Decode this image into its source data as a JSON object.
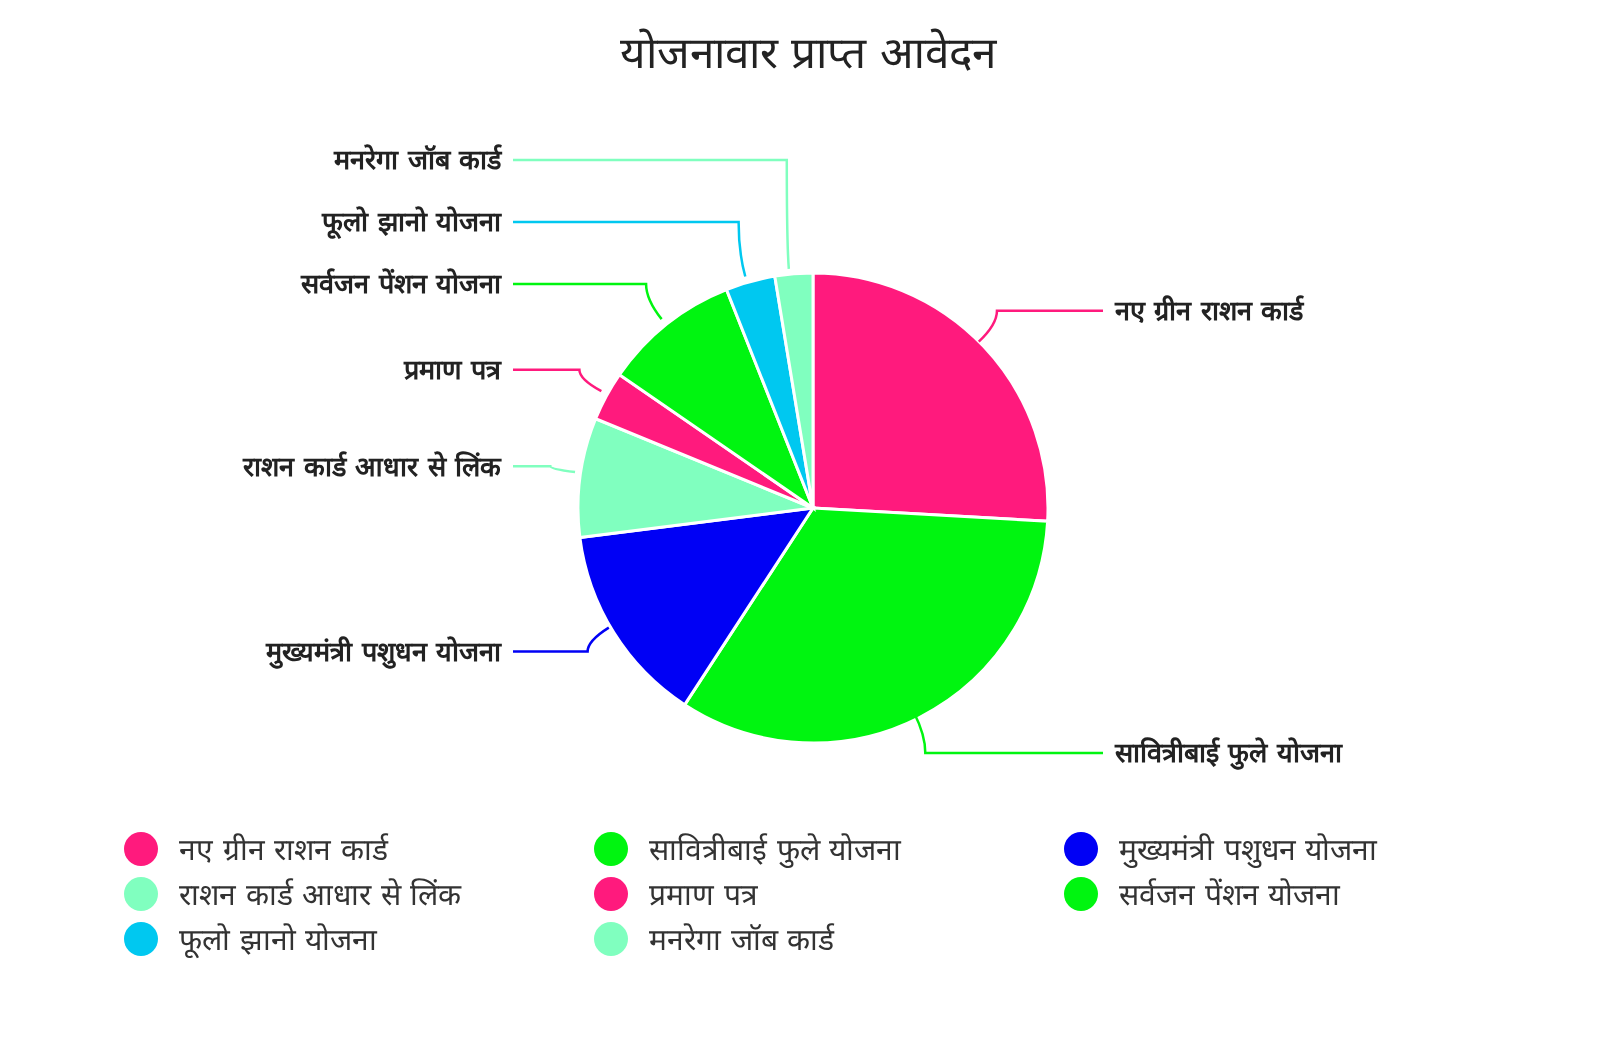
{
  "chart_data": {
    "type": "pie",
    "title": "योजनावार प्राप्त आवेदन",
    "categories": [
      "नए ग्रीन राशन कार्ड",
      "सावित्रीबाई फुले योजना",
      "मुख्यमंत्री पशुधन योजना",
      "राशन कार्ड आधार से लिंक",
      "प्रमाण पत्र",
      "सर्वजन पेंशन योजना",
      "फूलो झानो योजना",
      "मनरेगा जॉब कार्ड"
    ],
    "values": [
      25.9,
      33.3,
      13.8,
      8.2,
      3.4,
      9.4,
      3.4,
      2.6
    ],
    "colors": [
      "#ff1a7d",
      "#00f510",
      "#0000f5",
      "#80ffbf",
      "#ff1a7d",
      "#00f510",
      "#00c8f0",
      "#80ffbf"
    ],
    "legend": "bottom"
  }
}
